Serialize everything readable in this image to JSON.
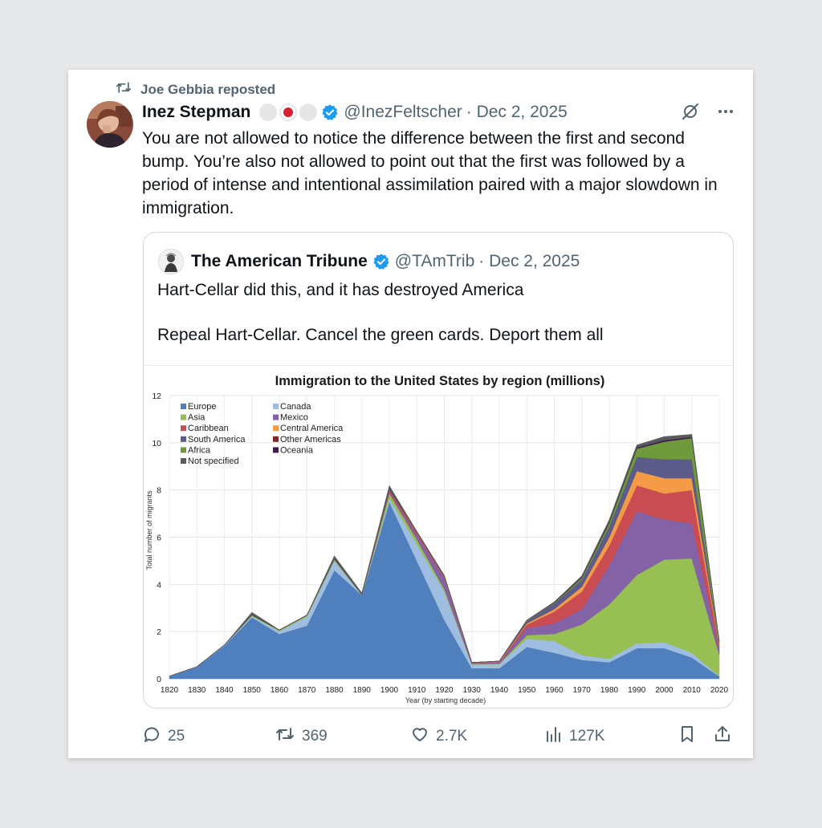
{
  "repost": {
    "label": "Joe Gebbia reposted"
  },
  "post": {
    "author_name": "Inez Stepman",
    "handle": "@InezFeltscher",
    "date": "· Dec 2, 2025",
    "text": "You are not allowed to notice the difference between the first and second bump. You’re also not allowed to point out that the first was followed by a period of intense and intentional assimilation paired with a major slowdown in immigration."
  },
  "quote": {
    "author_name": "The American Tribune",
    "handle": "@TAmTrib",
    "date": "· Dec 2, 2025",
    "line1": "Hart-Cellar did this, and it has destroyed America",
    "line2": "Repeal Hart-Cellar. Cancel the green cards. Deport them all"
  },
  "actions": {
    "replies": "25",
    "reposts": "369",
    "likes": "2.7K",
    "views": "127K"
  },
  "chart_data": {
    "type": "area",
    "title": "Immigration to the United States by region (millions)",
    "xlabel": "Year (by starting decade)",
    "ylabel": "Total number of migrants",
    "ylim": [
      0,
      12
    ],
    "yticks": [
      0,
      2,
      4,
      6,
      8,
      10,
      12
    ],
    "x": [
      1820,
      1830,
      1840,
      1850,
      1860,
      1870,
      1880,
      1890,
      1900,
      1910,
      1920,
      1930,
      1940,
      1950,
      1960,
      1970,
      1980,
      1990,
      2000,
      2010,
      2020
    ],
    "grid": true,
    "legend_placement": "top-left",
    "series": [
      {
        "name": "Europe",
        "color": "#4f7fbd",
        "values": [
          0.1,
          0.5,
          1.4,
          2.6,
          1.9,
          2.25,
          4.6,
          3.55,
          7.5,
          5.0,
          2.5,
          0.45,
          0.45,
          1.35,
          1.1,
          0.8,
          0.7,
          1.3,
          1.3,
          0.9,
          0.1
        ]
      },
      {
        "name": "Canada",
        "color": "#9ebde0",
        "values": [
          0.01,
          0.01,
          0.03,
          0.06,
          0.12,
          0.38,
          0.4,
          0.0,
          0.15,
          0.7,
          1.2,
          0.15,
          0.17,
          0.35,
          0.5,
          0.2,
          0.15,
          0.2,
          0.25,
          0.2,
          0.02
        ]
      },
      {
        "name": "Asia",
        "color": "#97bf53",
        "values": [
          0.0,
          0.0,
          0.0,
          0.04,
          0.04,
          0.06,
          0.07,
          0.02,
          0.2,
          0.2,
          0.1,
          0.03,
          0.02,
          0.15,
          0.3,
          1.3,
          2.3,
          2.9,
          3.5,
          4.0,
          0.9
        ]
      },
      {
        "name": "Mexico",
        "color": "#8462a6",
        "values": [
          0.0,
          0.0,
          0.0,
          0.0,
          0.0,
          0.0,
          0.0,
          0.0,
          0.05,
          0.2,
          0.45,
          0.03,
          0.06,
          0.3,
          0.45,
          0.65,
          1.65,
          2.7,
          1.7,
          1.5,
          0.2
        ]
      },
      {
        "name": "Caribbean",
        "color": "#c84c52",
        "values": [
          0.0,
          0.0,
          0.0,
          0.0,
          0.0,
          0.0,
          0.0,
          0.0,
          0.1,
          0.1,
          0.05,
          0.02,
          0.02,
          0.15,
          0.5,
          0.75,
          0.85,
          1.1,
          1.1,
          1.4,
          0.15
        ]
      },
      {
        "name": "Central America",
        "color": "#f59b47",
        "values": [
          0.0,
          0.0,
          0.0,
          0.0,
          0.0,
          0.0,
          0.0,
          0.0,
          0.0,
          0.0,
          0.01,
          0.0,
          0.01,
          0.05,
          0.1,
          0.2,
          0.35,
          0.6,
          0.65,
          0.5,
          0.05
        ]
      },
      {
        "name": "South America",
        "color": "#5c5c8a",
        "values": [
          0.0,
          0.0,
          0.0,
          0.0,
          0.0,
          0.0,
          0.0,
          0.0,
          0.01,
          0.02,
          0.04,
          0.01,
          0.01,
          0.1,
          0.25,
          0.3,
          0.45,
          0.6,
          0.8,
          0.8,
          0.05
        ]
      },
      {
        "name": "Other Americas",
        "color": "#7a2a2a",
        "values": [
          0.0,
          0.0,
          0.0,
          0.0,
          0.0,
          0.0,
          0.0,
          0.0,
          0.0,
          0.0,
          0.0,
          0.0,
          0.0,
          0.0,
          0.0,
          0.0,
          0.0,
          0.0,
          0.0,
          0.0,
          0.0
        ]
      },
      {
        "name": "Africa",
        "color": "#6f9a3c",
        "values": [
          0.0,
          0.0,
          0.0,
          0.0,
          0.0,
          0.0,
          0.0,
          0.0,
          0.01,
          0.01,
          0.01,
          0.0,
          0.01,
          0.02,
          0.03,
          0.08,
          0.15,
          0.35,
          0.75,
          0.9,
          0.1
        ]
      },
      {
        "name": "Oceania",
        "color": "#3b1f4a",
        "values": [
          0.0,
          0.0,
          0.0,
          0.01,
          0.01,
          0.01,
          0.01,
          0.01,
          0.01,
          0.01,
          0.01,
          0.0,
          0.0,
          0.01,
          0.02,
          0.03,
          0.04,
          0.05,
          0.06,
          0.05,
          0.01
        ]
      },
      {
        "name": "Not specified",
        "color": "#59595e",
        "values": [
          0.0,
          0.0,
          0.0,
          0.1,
          0.0,
          0.0,
          0.12,
          0.05,
          0.15,
          0.0,
          0.0,
          0.0,
          0.0,
          0.0,
          0.0,
          0.05,
          0.1,
          0.1,
          0.15,
          0.1,
          0.0
        ]
      }
    ]
  }
}
